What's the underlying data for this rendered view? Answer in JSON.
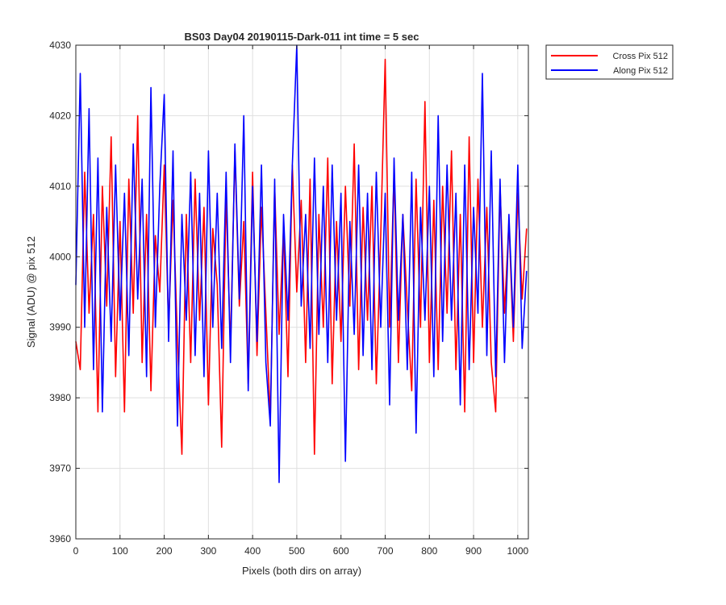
{
  "chart_data": {
    "type": "line",
    "title": "BS03 Day04 20190115-Dark-011 int time = 5 sec",
    "xlabel": "Pixels (both dirs on array)",
    "ylabel": "Signal (ADU) @ pix 512",
    "xlim": [
      0,
      1024
    ],
    "ylim": [
      3960,
      4030
    ],
    "xticks": [
      0,
      100,
      200,
      300,
      400,
      500,
      600,
      700,
      800,
      900,
      1000
    ],
    "yticks": [
      3960,
      3970,
      3980,
      3990,
      4000,
      4010,
      4020,
      4030
    ],
    "grid": true,
    "legend_position": "outside-top-right",
    "series": [
      {
        "name": "Cross Pix 512",
        "color": "#ff0000",
        "x": [
          0,
          10,
          20,
          30,
          40,
          50,
          60,
          70,
          80,
          90,
          100,
          110,
          120,
          130,
          140,
          150,
          160,
          170,
          180,
          190,
          200,
          210,
          220,
          230,
          240,
          250,
          260,
          270,
          280,
          290,
          300,
          310,
          320,
          330,
          340,
          350,
          360,
          370,
          380,
          390,
          400,
          410,
          420,
          430,
          440,
          450,
          460,
          470,
          480,
          490,
          500,
          510,
          520,
          530,
          540,
          550,
          560,
          570,
          580,
          590,
          600,
          610,
          620,
          630,
          640,
          650,
          660,
          670,
          680,
          690,
          700,
          710,
          720,
          730,
          740,
          750,
          760,
          770,
          780,
          790,
          800,
          810,
          820,
          830,
          840,
          850,
          860,
          870,
          880,
          890,
          900,
          910,
          920,
          930,
          940,
          950,
          960,
          970,
          980,
          990,
          1000,
          1010,
          1020
        ],
        "values": [
          3988,
          3984,
          4012,
          3992,
          4006,
          3978,
          4010,
          3993,
          4017,
          3983,
          4005,
          3978,
          4011,
          3992,
          4020,
          3985,
          4006,
          3981,
          4003,
          3995,
          4013,
          3990,
          4008,
          3988,
          3972,
          4006,
          3985,
          4011,
          3991,
          4007,
          3979,
          4004,
          3996,
          3973,
          4009,
          3987,
          4015,
          3993,
          4005,
          3982,
          4012,
          3986,
          4007,
          3992,
          3977,
          4010,
          3989,
          4004,
          3983,
          4013,
          3995,
          4008,
          3985,
          4011,
          3972,
          4006,
          3990,
          4014,
          3982,
          4005,
          3988,
          4010,
          3993,
          4016,
          3984,
          4007,
          3991,
          4010,
          3982,
          4003,
          4028,
          3990,
          4012,
          3985,
          4006,
          3993,
          3981,
          4011,
          3990,
          4022,
          3985,
          4008,
          3984,
          4010,
          3992,
          4015,
          3984,
          4006,
          3978,
          4017,
          3985,
          4011,
          3990,
          4007,
          3985,
          3978,
          4010,
          3992,
          4005,
          3988,
          4009,
          3994,
          4004
        ]
      },
      {
        "name": "Along Pix 512",
        "color": "#0000ff",
        "x": [
          0,
          10,
          20,
          30,
          40,
          50,
          60,
          70,
          80,
          90,
          100,
          110,
          120,
          130,
          140,
          150,
          160,
          170,
          180,
          190,
          200,
          210,
          220,
          230,
          240,
          250,
          260,
          270,
          280,
          290,
          300,
          310,
          320,
          330,
          340,
          350,
          360,
          370,
          380,
          390,
          400,
          410,
          420,
          430,
          440,
          450,
          460,
          470,
          480,
          490,
          500,
          510,
          520,
          530,
          540,
          550,
          560,
          570,
          580,
          590,
          600,
          610,
          620,
          630,
          640,
          650,
          660,
          670,
          680,
          690,
          700,
          710,
          720,
          730,
          740,
          750,
          760,
          770,
          780,
          790,
          800,
          810,
          820,
          830,
          840,
          850,
          860,
          870,
          880,
          890,
          900,
          910,
          920,
          930,
          940,
          950,
          960,
          970,
          980,
          990,
          1000,
          1010,
          1020
        ],
        "values": [
          3996,
          4026,
          3990,
          4021,
          3984,
          4014,
          3978,
          4007,
          3988,
          4013,
          3991,
          4009,
          3986,
          4016,
          3994,
          4011,
          3983,
          4024,
          3990,
          4010,
          4023,
          3988,
          4015,
          3976,
          4006,
          3991,
          4012,
          3986,
          4009,
          3983,
          4015,
          3990,
          4009,
          3987,
          4012,
          3985,
          4016,
          3994,
          4020,
          3981,
          4010,
          3988,
          4013,
          3985,
          3976,
          4011,
          3968,
          4006,
          3991,
          4013,
          4030,
          3993,
          4006,
          3987,
          4014,
          3989,
          4010,
          3985,
          4013,
          3991,
          4009,
          3971,
          4005,
          3989,
          4013,
          3986,
          4009,
          3984,
          4012,
          3990,
          4009,
          3979,
          4014,
          3991,
          4006,
          3984,
          4012,
          3975,
          4007,
          3991,
          4010,
          3983,
          4020,
          3988,
          4013,
          3991,
          4009,
          3979,
          4013,
          3984,
          4007,
          3992,
          4026,
          3986,
          4015,
          3983,
          4011,
          3985,
          4006,
          3990,
          4013,
          3987,
          3998
        ]
      }
    ]
  }
}
